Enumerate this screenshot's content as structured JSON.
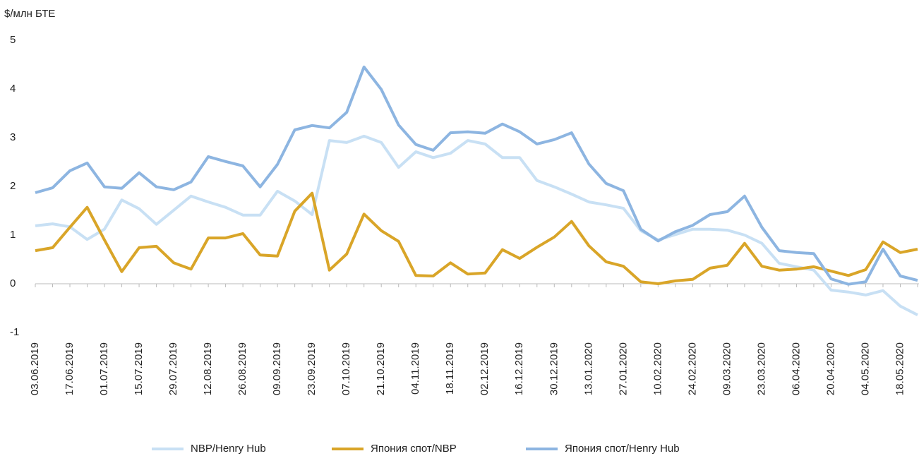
{
  "chart_data": {
    "type": "line",
    "y_label": "$/млн БТЕ",
    "categories": [
      "03.06.2019",
      null,
      "17.06.2019",
      null,
      "01.07.2019",
      null,
      "15.07.2019",
      null,
      "29.07.2019",
      null,
      "12.08.2019",
      null,
      "26.08.2019",
      null,
      "09.09.2019",
      null,
      "23.09.2019",
      null,
      "07.10.2019",
      null,
      "21.10.2019",
      null,
      "04.11.2019",
      null,
      "18.11.2019",
      null,
      "02.12.2019",
      null,
      "16.12.2019",
      null,
      "30.12.2019",
      null,
      "13.01.2020",
      null,
      "27.01.2020",
      null,
      "10.02.2020",
      null,
      "24.02.2020",
      null,
      "09.03.2020",
      null,
      "23.03.2020",
      null,
      "06.04.2020",
      null,
      "20.04.2020",
      null,
      "04.05.2020",
      null,
      "18.05.2020",
      null
    ],
    "series": [
      {
        "name": "NBP/Henry Hub",
        "color": "#c8e0f4",
        "values": [
          1.19,
          1.23,
          1.17,
          0.91,
          1.12,
          1.72,
          1.54,
          1.22,
          1.51,
          1.8,
          1.68,
          1.57,
          1.41,
          1.41,
          1.9,
          1.7,
          1.42,
          2.94,
          2.9,
          3.03,
          2.9,
          2.39,
          2.71,
          2.59,
          2.68,
          2.94,
          2.87,
          2.59,
          2.59,
          2.12,
          1.99,
          1.84,
          1.68,
          1.62,
          1.55,
          1.09,
          0.9,
          1.01,
          1.12,
          1.12,
          1.1,
          1.0,
          0.83,
          0.42,
          0.35,
          0.28,
          -0.13,
          -0.17,
          -0.23,
          -0.14,
          -0.46,
          -0.64
        ]
      },
      {
        "name": "Япония спот/NBP",
        "color": "#d9a528",
        "values": [
          0.68,
          0.74,
          1.16,
          1.57,
          0.9,
          0.25,
          0.74,
          0.77,
          0.43,
          0.3,
          0.94,
          0.94,
          1.03,
          0.59,
          0.57,
          1.49,
          1.86,
          0.28,
          0.61,
          1.43,
          1.09,
          0.87,
          0.17,
          0.16,
          0.43,
          0.2,
          0.22,
          0.7,
          0.52,
          0.75,
          0.96,
          1.28,
          0.78,
          0.45,
          0.36,
          0.04,
          0.0,
          0.06,
          0.09,
          0.32,
          0.38,
          0.83,
          0.36,
          0.28,
          0.3,
          0.35,
          0.26,
          0.17,
          0.29,
          0.86,
          0.64,
          0.71
        ]
      },
      {
        "name": "Япония спот/Henry Hub",
        "color": "#8db5e1",
        "values": [
          1.87,
          1.97,
          2.32,
          2.48,
          1.99,
          1.96,
          2.28,
          1.99,
          1.93,
          2.09,
          2.61,
          2.51,
          2.42,
          1.99,
          2.45,
          3.16,
          3.25,
          3.2,
          3.52,
          4.45,
          3.99,
          3.26,
          2.86,
          2.74,
          3.1,
          3.12,
          3.09,
          3.28,
          3.12,
          2.87,
          2.96,
          3.1,
          2.46,
          2.06,
          1.91,
          1.12,
          0.88,
          1.07,
          1.2,
          1.42,
          1.48,
          1.8,
          1.16,
          0.68,
          0.64,
          0.62,
          0.1,
          -0.01,
          0.04,
          0.71,
          0.16,
          0.07
        ]
      }
    ],
    "ylim": [
      -1,
      5
    ],
    "yticks": [
      -1,
      0,
      1,
      2,
      3,
      4,
      5
    ],
    "legend": "bottom"
  }
}
